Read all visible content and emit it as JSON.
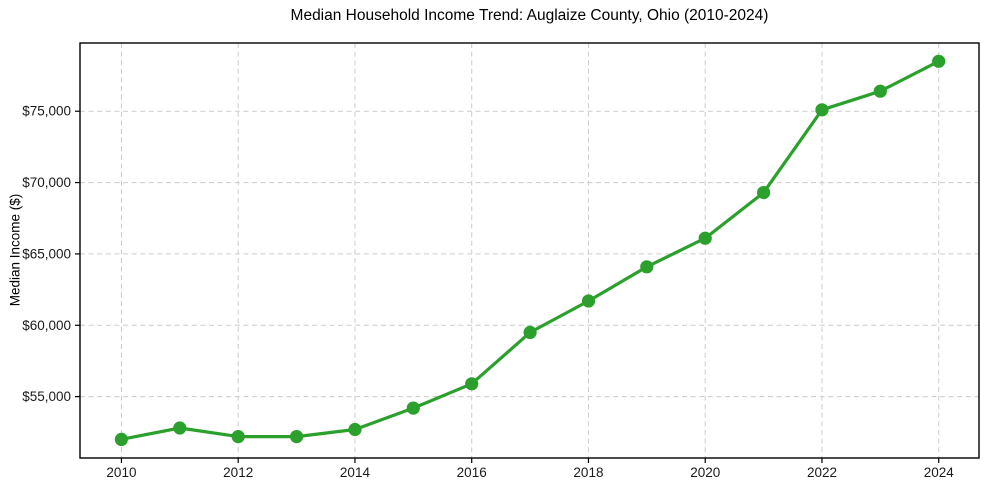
{
  "chart_data": {
    "type": "line",
    "title": "Median Household Income Trend: Auglaize County, Ohio (2010-2024)",
    "xlabel": "",
    "ylabel": "Median Income ($)",
    "x": [
      2010,
      2011,
      2012,
      2013,
      2014,
      2015,
      2016,
      2017,
      2018,
      2019,
      2020,
      2021,
      2022,
      2023,
      2024
    ],
    "series": [
      {
        "name": "Median Household Income",
        "values": [
          52000,
          52800,
          52200,
          52200,
          52700,
          54200,
          55900,
          59500,
          61700,
          64100,
          66100,
          69300,
          75100,
          76400,
          78500
        ],
        "color": "#2ca02c"
      }
    ],
    "xticks": [
      2010,
      2012,
      2014,
      2016,
      2018,
      2020,
      2022,
      2024
    ],
    "xtick_labels": [
      "2010",
      "2012",
      "2014",
      "2016",
      "2018",
      "2020",
      "2022",
      "2024"
    ],
    "yticks": [
      55000,
      60000,
      65000,
      70000,
      75000
    ],
    "ytick_labels": [
      "$55,000",
      "$60,000",
      "$65,000",
      "$70,000",
      "$75,000"
    ],
    "xlim": [
      2009.29,
      2024.69
    ],
    "ylim": [
      50700,
      79780
    ],
    "grid": true,
    "grid_style": "dashed",
    "grid_color": "#cccccc",
    "spine_color": "#000000",
    "background_color": "#ffffff",
    "line_color": "#2ca02c",
    "marker": "circle",
    "marker_size": 6.6,
    "line_width": 3.2,
    "legend": "none"
  }
}
